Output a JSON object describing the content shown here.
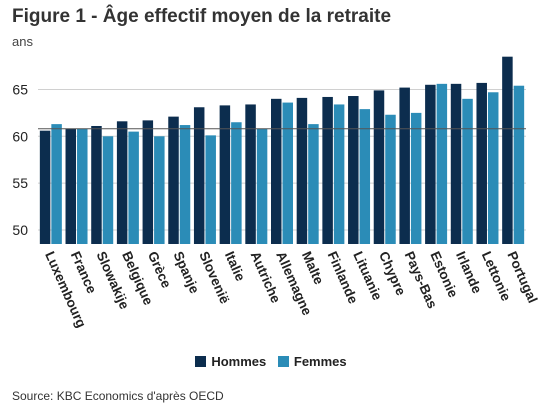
{
  "title": "Figure 1 - Âge effectif moyen de la retraite",
  "subtitle": "ans",
  "source": "Source: KBC Economics d'après OECD",
  "colors": {
    "hommes": "#0c2d4e",
    "femmes": "#2b8cb7",
    "grid": "#d0d0d0",
    "reference_line": "#555555"
  },
  "chart_data": {
    "type": "bar",
    "title": "Figure 1 - Âge effectif moyen de la retraite",
    "ylabel": "ans",
    "ylim": [
      48.5,
      69
    ],
    "yticks": [
      50,
      55,
      60,
      65
    ],
    "grid": true,
    "legend_position": "bottom",
    "reference_line": 60.8,
    "categories": [
      "Luxembourg",
      "France",
      "Slowakije",
      "Belgique",
      "Grèce",
      "Spanje",
      "Slovenië",
      "Italie",
      "Autriche",
      "Allemagne",
      "Malte",
      "Finlande",
      "Lituanie",
      "Chypre",
      "Pays-Bas",
      "Estonie",
      "Irlande",
      "Lettonie",
      "Portugal"
    ],
    "series": [
      {
        "name": "Hommes",
        "values": [
          60.6,
          60.8,
          61.1,
          61.6,
          61.7,
          62.1,
          63.1,
          63.3,
          63.4,
          64.0,
          64.1,
          64.2,
          64.3,
          64.9,
          65.2,
          65.5,
          65.6,
          65.7,
          68.5
        ]
      },
      {
        "name": "Femmes",
        "values": [
          61.3,
          60.8,
          60.0,
          60.5,
          60.0,
          61.2,
          60.1,
          61.5,
          60.8,
          63.6,
          61.3,
          63.4,
          62.9,
          62.3,
          62.5,
          65.6,
          64.0,
          64.7,
          65.4
        ]
      }
    ]
  }
}
